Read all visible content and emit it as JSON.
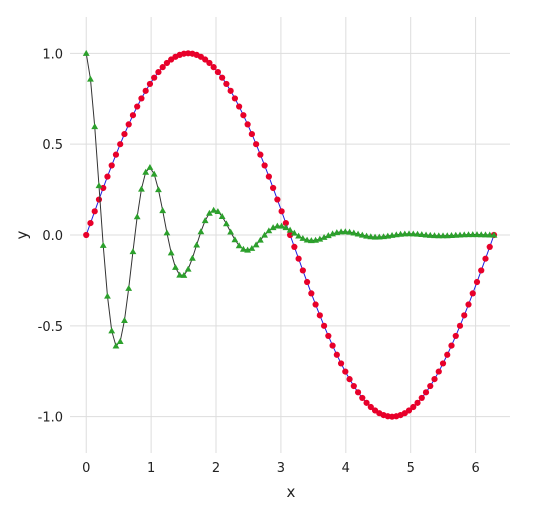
{
  "chart_data": {
    "type": "line",
    "xlabel": "x",
    "ylabel": "y",
    "xlim": [
      -0.25,
      6.53
    ],
    "ylim": [
      -1.2,
      1.2
    ],
    "xticks": [
      0,
      1,
      2,
      3,
      4,
      5,
      6
    ],
    "xtick_labels": [
      "0",
      "1",
      "2",
      "3",
      "4",
      "5",
      "6"
    ],
    "yticks": [
      -1.0,
      -0.5,
      0.0,
      0.5,
      1.0
    ],
    "ytick_labels": [
      "-1.0",
      "-0.5",
      "0.0",
      "0.5",
      "1.0"
    ],
    "grid": true,
    "x_range": [
      0,
      6.2832
    ],
    "points_per_series": 97,
    "series": [
      {
        "formula": "sin(x)",
        "line_color": "#1f1fe0",
        "marker": "circle",
        "marker_color": "#e8002a"
      },
      {
        "formula": "cos(2*pi*x) * exp(-x)",
        "line_color": "#333333",
        "marker": "triangle",
        "marker_color": "#2ca02c"
      }
    ]
  }
}
